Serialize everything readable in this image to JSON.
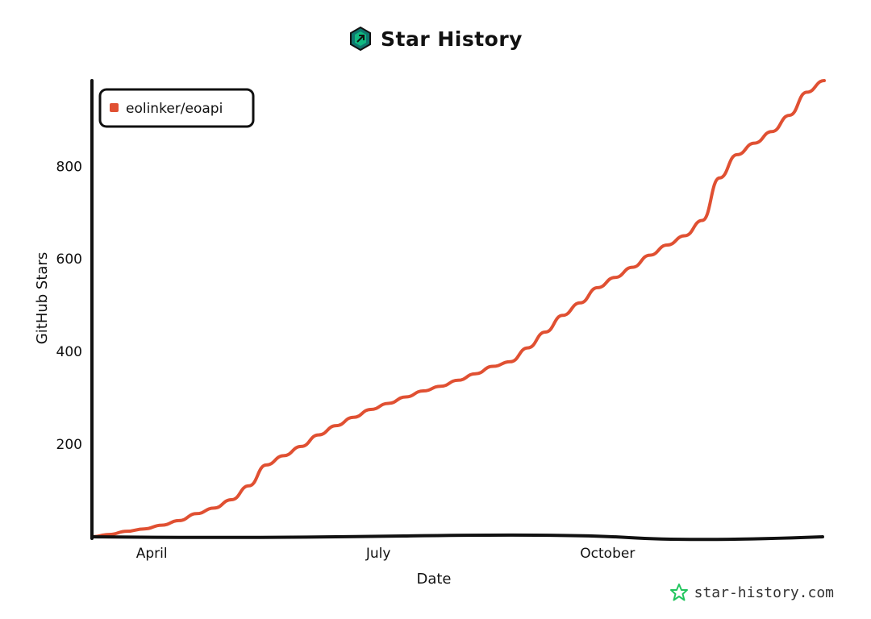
{
  "header": {
    "title": "Star History",
    "logo_icon": "star-history-logo-icon"
  },
  "watermark": {
    "text": "star-history.com",
    "icon": "star-icon",
    "color": "#22c55e"
  },
  "colors": {
    "series": "#e05032",
    "axis": "#111111",
    "logo": "#1f9d7a"
  },
  "chart_data": {
    "type": "line",
    "title": "Star History",
    "xlabel": "Date",
    "ylabel": "GitHub Stars",
    "x_ticks": [
      {
        "label": "April",
        "date": "2022-04-01"
      },
      {
        "label": "July",
        "date": "2022-07-01"
      },
      {
        "label": "October",
        "date": "2022-10-01"
      }
    ],
    "y_ticks": [
      200,
      400,
      600,
      800
    ],
    "xlim": [
      "2022-03-08",
      "2022-12-27"
    ],
    "ylim": [
      0,
      985
    ],
    "legend": {
      "position": "top-left",
      "entries": [
        "eolinker/eoapi"
      ]
    },
    "grid": false,
    "series": [
      {
        "name": "eolinker/eoapi",
        "color": "#e05032",
        "points": [
          [
            "2022-03-08",
            0
          ],
          [
            "2022-03-15",
            5
          ],
          [
            "2022-03-22",
            12
          ],
          [
            "2022-03-29",
            17
          ],
          [
            "2022-04-05",
            25
          ],
          [
            "2022-04-12",
            35
          ],
          [
            "2022-04-19",
            50
          ],
          [
            "2022-04-26",
            62
          ],
          [
            "2022-05-03",
            80
          ],
          [
            "2022-05-10",
            110
          ],
          [
            "2022-05-17",
            155
          ],
          [
            "2022-05-24",
            175
          ],
          [
            "2022-05-31",
            195
          ],
          [
            "2022-06-07",
            220
          ],
          [
            "2022-06-14",
            240
          ],
          [
            "2022-06-21",
            258
          ],
          [
            "2022-06-28",
            275
          ],
          [
            "2022-07-05",
            288
          ],
          [
            "2022-07-12",
            302
          ],
          [
            "2022-07-19",
            315
          ],
          [
            "2022-07-26",
            325
          ],
          [
            "2022-08-02",
            338
          ],
          [
            "2022-08-09",
            352
          ],
          [
            "2022-08-16",
            368
          ],
          [
            "2022-08-23",
            378
          ],
          [
            "2022-08-30",
            408
          ],
          [
            "2022-09-06",
            442
          ],
          [
            "2022-09-13",
            478
          ],
          [
            "2022-09-20",
            505
          ],
          [
            "2022-09-27",
            538
          ],
          [
            "2022-10-04",
            560
          ],
          [
            "2022-10-11",
            582
          ],
          [
            "2022-10-18",
            608
          ],
          [
            "2022-10-25",
            630
          ],
          [
            "2022-11-01",
            650
          ],
          [
            "2022-11-08",
            683
          ],
          [
            "2022-11-15",
            775
          ],
          [
            "2022-11-22",
            825
          ],
          [
            "2022-11-29",
            850
          ],
          [
            "2022-12-06",
            875
          ],
          [
            "2022-12-13",
            910
          ],
          [
            "2022-12-20",
            960
          ],
          [
            "2022-12-27",
            985
          ]
        ]
      }
    ]
  }
}
